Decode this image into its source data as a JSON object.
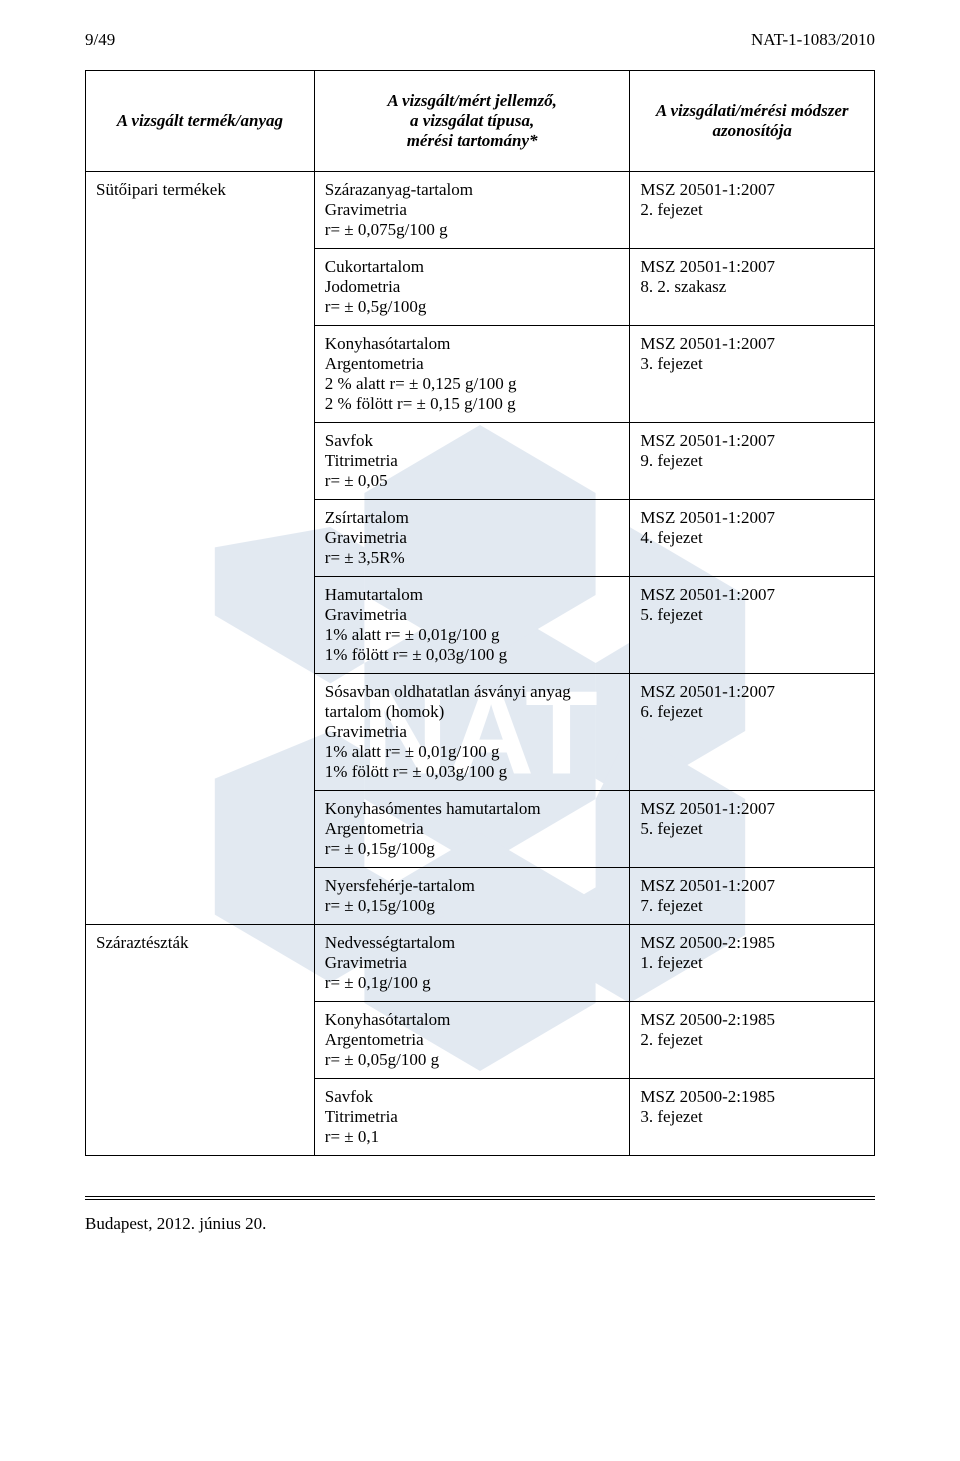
{
  "header": {
    "page_num": "9/49",
    "doc_id": "NAT-1-1083/2010"
  },
  "table": {
    "head": {
      "c1": "A vizsgált termék/anyag",
      "c2": "A vizsgált/mért jellemző,\na vizsgálat típusa,\nmérési tartomány*",
      "c3": "A vizsgálati/mérési módszer\nazonosítója"
    },
    "rows": [
      {
        "c1": "Sütőipari termékek",
        "c2": "Szárazanyag-tartalom\nGravimetria\nr= ± 0,075g/100 g",
        "c3": "MSZ 20501-1:2007\n2. fejezet"
      },
      {
        "c1": "",
        "c2": "Cukortartalom\nJodometria\nr= ± 0,5g/100g",
        "c3": "MSZ 20501-1:2007\n8. 2. szakasz"
      },
      {
        "c1": "",
        "c2": "Konyhasótartalom\nArgentometria\n2 % alatt   r= ± 0,125 g/100 g\n2 % fölött  r= ± 0,15 g/100 g",
        "c3": "MSZ 20501-1:2007\n3. fejezet"
      },
      {
        "c1": "",
        "c2": "Savfok\nTitrimetria\nr= ± 0,05",
        "c3": "MSZ 20501-1:2007\n9. fejezet"
      },
      {
        "c1": "",
        "c2": "Zsírtartalom\nGravimetria\nr= ± 3,5R%",
        "c3": "MSZ 20501-1:2007\n4. fejezet"
      },
      {
        "c1": "",
        "c2": "Hamutartalom\nGravimetria\n1% alatt   r= ± 0,01g/100 g\n1% fölött  r= ± 0,03g/100 g",
        "c3": "MSZ 20501-1:2007\n5. fejezet"
      },
      {
        "c1": "",
        "c2": "Sósavban oldhatatlan ásványi anyag\ntartalom (homok)\nGravimetria\n1% alatt   r= ± 0,01g/100 g\n1% fölött  r= ± 0,03g/100 g",
        "c3": "MSZ 20501-1:2007\n6. fejezet"
      },
      {
        "c1": "",
        "c2": "Konyhasómentes hamutartalom\nArgentometria\nr= ± 0,15g/100g",
        "c3": "MSZ 20501-1:2007\n5. fejezet"
      },
      {
        "c1": "",
        "c2": "Nyersfehérje-tartalom\nr= ± 0,15g/100g",
        "c3": "MSZ 20501-1:2007\n7. fejezet"
      },
      {
        "c1": "Száraztészták",
        "c2": "Nedvességtartalom\nGravimetria\nr= ± 0,1g/100 g",
        "c3": "MSZ 20500-2:1985\n1. fejezet"
      },
      {
        "c1": "",
        "c2": "Konyhasótartalom\nArgentometria\nr= ± 0,05g/100 g",
        "c3": "MSZ 20500-2:1985\n2. fejezet"
      },
      {
        "c1": "",
        "c2": "Savfok\nTitrimetria\nr= ± 0,1",
        "c3": "MSZ 20500-2:1985\n3. fejezet"
      }
    ]
  },
  "footer": {
    "text": "Budapest, 2012. június 20."
  },
  "watermark": {
    "fill": "#2a5a9a",
    "text_fill": "#2a5a9a"
  }
}
